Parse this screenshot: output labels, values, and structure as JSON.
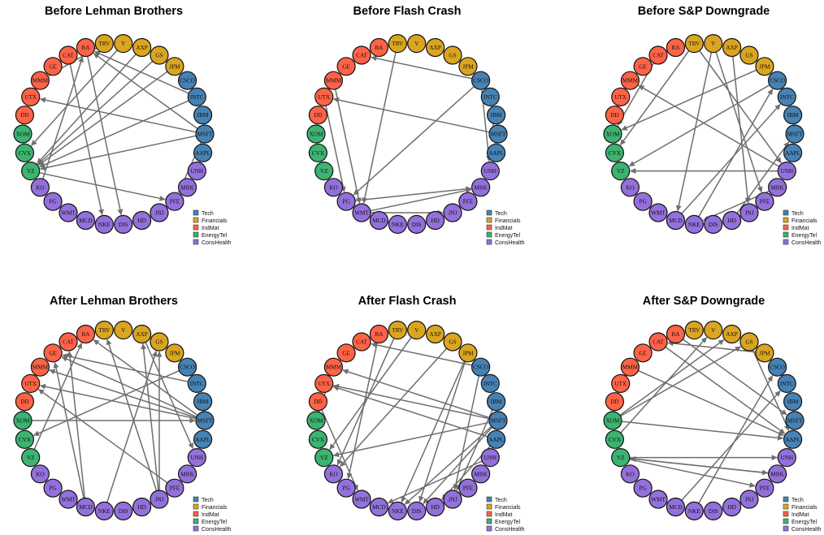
{
  "colors": {
    "Tech": "#4682b4",
    "Financials": "#daa520",
    "IndMat": "#ff6347",
    "EnergyTel": "#3cb371",
    "ConsHealth": "#9370db",
    "edge": "#6e6e6e"
  },
  "legend": [
    "Tech",
    "Financials",
    "IndMat",
    "EnergyTel",
    "ConsHealth"
  ],
  "nodes": [
    {
      "id": "V",
      "group": "Financials"
    },
    {
      "id": "AXP",
      "group": "Financials"
    },
    {
      "id": "GS",
      "group": "Financials"
    },
    {
      "id": "JPM",
      "group": "Financials"
    },
    {
      "id": "CSCO",
      "group": "Tech"
    },
    {
      "id": "INTC",
      "group": "Tech"
    },
    {
      "id": "IBM",
      "group": "Tech"
    },
    {
      "id": "MSFT",
      "group": "Tech"
    },
    {
      "id": "AAPL",
      "group": "Tech"
    },
    {
      "id": "UNH",
      "group": "ConsHealth"
    },
    {
      "id": "MRK",
      "group": "ConsHealth"
    },
    {
      "id": "PFE",
      "group": "ConsHealth"
    },
    {
      "id": "JNJ",
      "group": "ConsHealth"
    },
    {
      "id": "HD",
      "group": "ConsHealth"
    },
    {
      "id": "DIS",
      "group": "ConsHealth"
    },
    {
      "id": "NKE",
      "group": "ConsHealth"
    },
    {
      "id": "MCD",
      "group": "ConsHealth"
    },
    {
      "id": "WMT",
      "group": "ConsHealth"
    },
    {
      "id": "PG",
      "group": "ConsHealth"
    },
    {
      "id": "KO",
      "group": "ConsHealth"
    },
    {
      "id": "VZ",
      "group": "EnergyTel"
    },
    {
      "id": "CVX",
      "group": "EnergyTel"
    },
    {
      "id": "XOM",
      "group": "EnergyTel"
    },
    {
      "id": "DD",
      "group": "IndMat"
    },
    {
      "id": "UTX",
      "group": "IndMat"
    },
    {
      "id": "MMM",
      "group": "IndMat"
    },
    {
      "id": "GE",
      "group": "IndMat"
    },
    {
      "id": "CAT",
      "group": "IndMat"
    },
    {
      "id": "BA",
      "group": "IndMat"
    },
    {
      "id": "TRV",
      "group": "Financials"
    }
  ],
  "panels": [
    {
      "title": "Before Lehman Brothers",
      "edges": [
        [
          "MSFT",
          "UTX"
        ],
        [
          "MSFT",
          "BA"
        ],
        [
          "INTC",
          "BA"
        ],
        [
          "GS",
          "VZ"
        ],
        [
          "AXP",
          "VZ"
        ],
        [
          "V",
          "CVX"
        ],
        [
          "JPM",
          "VZ"
        ],
        [
          "INTC",
          "VZ"
        ],
        [
          "TRV",
          "MMM"
        ],
        [
          "CAT",
          "NKE"
        ],
        [
          "BA",
          "DIS"
        ],
        [
          "VZ",
          "PFE"
        ],
        [
          "KO",
          "BA"
        ],
        [
          "MSFT",
          "PFE"
        ],
        [
          "MSFT",
          "VZ"
        ]
      ]
    },
    {
      "title": "Before Flash Crash",
      "edges": [
        [
          "CSCO",
          "CAT"
        ],
        [
          "TRV",
          "WMT"
        ],
        [
          "CSCO",
          "PG"
        ],
        [
          "INTC",
          "AAPL"
        ],
        [
          "CSCO",
          "UNH"
        ],
        [
          "UTX",
          "DD"
        ],
        [
          "MMM",
          "WMT"
        ],
        [
          "UTX",
          "PG"
        ],
        [
          "WMT",
          "MRK"
        ],
        [
          "WMT",
          "JNJ"
        ],
        [
          "PG",
          "MRK"
        ],
        [
          "MSFT",
          "UTX"
        ]
      ]
    },
    {
      "title": "Before S&P Downgrade",
      "edges": [
        [
          "JPM",
          "XOM"
        ],
        [
          "CSCO",
          "VZ"
        ],
        [
          "V",
          "PFE"
        ],
        [
          "V",
          "MCD"
        ],
        [
          "TRV",
          "CVX"
        ],
        [
          "TRV",
          "UNH"
        ],
        [
          "AXP",
          "JNJ"
        ],
        [
          "UNH",
          "MMM"
        ],
        [
          "UNH",
          "VZ"
        ],
        [
          "MCD",
          "INTC"
        ],
        [
          "NKE",
          "CSCO"
        ],
        [
          "HD",
          "MSFT"
        ],
        [
          "MRK",
          "NKE"
        ],
        [
          "CAT",
          "XOM"
        ]
      ]
    },
    {
      "title": "After Lehman Brothers",
      "edges": [
        [
          "CSCO",
          "CVX"
        ],
        [
          "MSFT",
          "GE"
        ],
        [
          "MSFT",
          "BA"
        ],
        [
          "INTC",
          "GE"
        ],
        [
          "MSFT",
          "MMM"
        ],
        [
          "MSFT",
          "UTX"
        ],
        [
          "JNJ",
          "AXP"
        ],
        [
          "JNJ",
          "GS"
        ],
        [
          "JNJ",
          "TRV"
        ],
        [
          "NKE",
          "GS"
        ],
        [
          "MCD",
          "GE"
        ],
        [
          "VZ",
          "BA"
        ],
        [
          "XOM",
          "MSFT"
        ],
        [
          "PFE",
          "UTX"
        ],
        [
          "AXP",
          "UNH"
        ],
        [
          "MCD",
          "CAT"
        ]
      ]
    },
    {
      "title": "After Flash Crash",
      "edges": [
        [
          "JPM",
          "NKE"
        ],
        [
          "JPM",
          "DIS"
        ],
        [
          "CSCO",
          "CAT"
        ],
        [
          "MSFT",
          "MMM"
        ],
        [
          "MSFT",
          "UTX"
        ],
        [
          "MSFT",
          "VZ"
        ],
        [
          "MSFT",
          "DIS"
        ],
        [
          "AAPL",
          "UTX"
        ],
        [
          "AAPL",
          "HD"
        ],
        [
          "TRV",
          "KO"
        ],
        [
          "V",
          "VZ"
        ],
        [
          "BA",
          "PG"
        ],
        [
          "DD",
          "WMT"
        ],
        [
          "CSCO",
          "JNJ"
        ],
        [
          "GS",
          "KO"
        ],
        [
          "UNH",
          "MCD"
        ],
        [
          "XOM",
          "MMM"
        ],
        [
          "MSFT",
          "NKE"
        ],
        [
          "IBM",
          "JNJ"
        ]
      ]
    },
    {
      "title": "After S&P Downgrade",
      "edges": [
        [
          "XOM",
          "AXP"
        ],
        [
          "XOM",
          "GS"
        ],
        [
          "CVX",
          "V"
        ],
        [
          "XOM",
          "AAPL"
        ],
        [
          "CAT",
          "AAPL"
        ],
        [
          "MMM",
          "AAPL"
        ],
        [
          "BA",
          "MSFT"
        ],
        [
          "VZ",
          "UNH"
        ],
        [
          "VZ",
          "MRK"
        ],
        [
          "VZ",
          "PFE"
        ],
        [
          "MRK",
          "VZ"
        ],
        [
          "MCD",
          "INTC"
        ],
        [
          "NKE",
          "CSCO"
        ],
        [
          "JPM",
          "CAT"
        ],
        [
          "GS",
          "AAPL"
        ]
      ]
    }
  ]
}
